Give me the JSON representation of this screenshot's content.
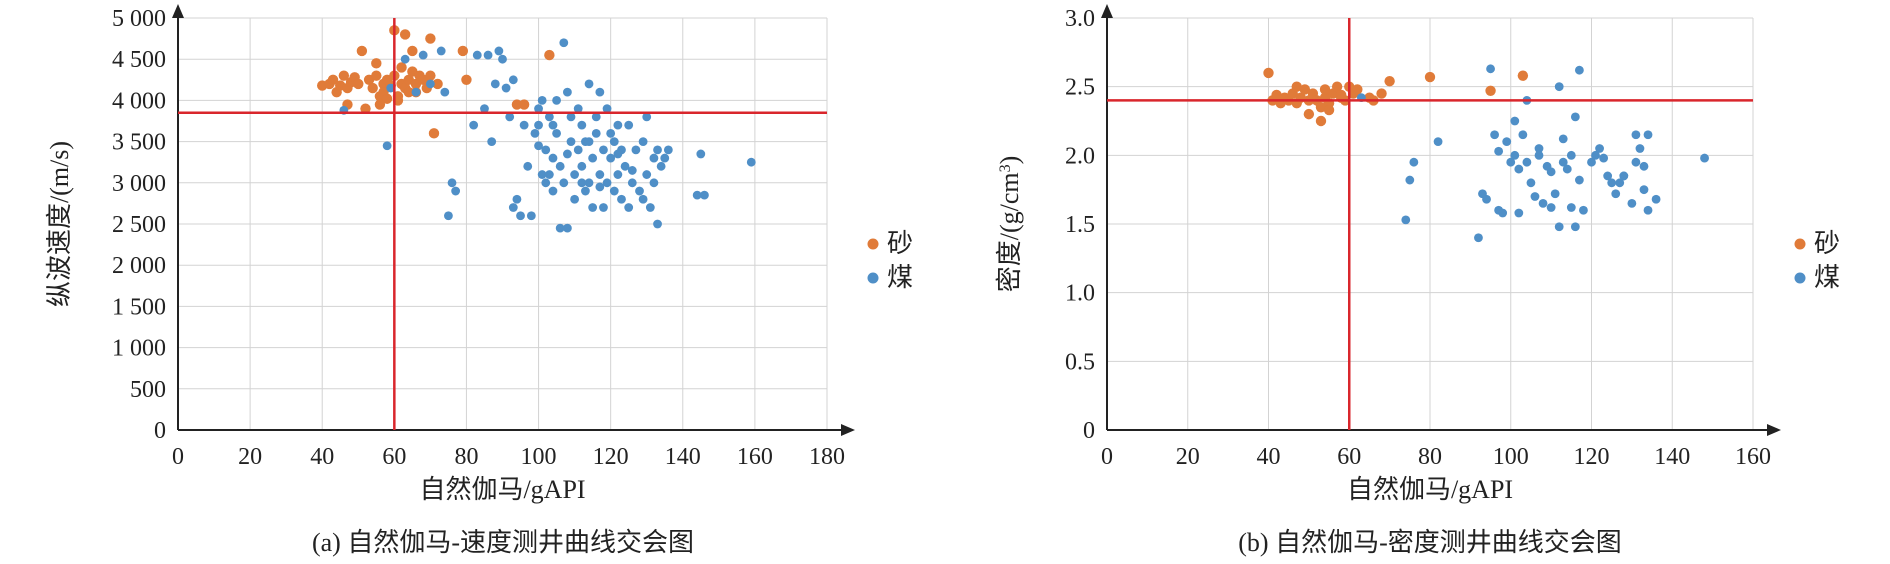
{
  "colors": {
    "sand": "#E07B39",
    "coal": "#4F8FC7",
    "threshold": "#D9262C",
    "grid": "#D3D3D3",
    "axis": "#222222"
  },
  "chart_data": [
    {
      "type": "scatter",
      "caption": "(a) 自然伽马-速度测井曲线交会图",
      "xlabel": "自然伽马/gAPI",
      "ylabel": "纵波速度/(m/s)",
      "xlim": [
        0,
        180
      ],
      "ylim": [
        0,
        5000
      ],
      "xticks": [
        "0",
        "20",
        "40",
        "60",
        "80",
        "100",
        "120",
        "140",
        "160",
        "180"
      ],
      "yticks": [
        "0",
        "500",
        "1 000",
        "1 500",
        "2 000",
        "2 500",
        "3 000",
        "3 500",
        "4 000",
        "4 500",
        "5 000"
      ],
      "grid": true,
      "legend": "right",
      "threshold": {
        "x": 60,
        "y": 3850
      },
      "series": [
        {
          "name": "砂",
          "points": [
            [
              40,
              4180
            ],
            [
              42,
              4200
            ],
            [
              43,
              4250
            ],
            [
              44,
              4100
            ],
            [
              45,
              4180
            ],
            [
              46,
              4300
            ],
            [
              47,
              4150
            ],
            [
              47,
              3950
            ],
            [
              48,
              4220
            ],
            [
              49,
              4280
            ],
            [
              50,
              4200
            ],
            [
              51,
              4600
            ],
            [
              52,
              3900
            ],
            [
              53,
              4250
            ],
            [
              54,
              4150
            ],
            [
              55,
              4300
            ],
            [
              55,
              4450
            ],
            [
              56,
              4050
            ],
            [
              56,
              3950
            ],
            [
              57,
              4200
            ],
            [
              57,
              4100
            ],
            [
              58,
              4250
            ],
            [
              59,
              4180
            ],
            [
              60,
              4850
            ],
            [
              60,
              4300
            ],
            [
              61,
              4000
            ],
            [
              62,
              4400
            ],
            [
              62,
              4200
            ],
            [
              63,
              4800
            ],
            [
              63,
              4150
            ],
            [
              64,
              4100
            ],
            [
              64,
              4250
            ],
            [
              65,
              4350
            ],
            [
              65,
              4600
            ],
            [
              66,
              4200
            ],
            [
              66,
              4100
            ],
            [
              67,
              4300
            ],
            [
              68,
              4250
            ],
            [
              69,
              4150
            ],
            [
              70,
              4750
            ],
            [
              70,
              4300
            ],
            [
              71,
              3600
            ],
            [
              72,
              4200
            ],
            [
              79,
              4600
            ],
            [
              80,
              4250
            ],
            [
              94,
              3950
            ],
            [
              103,
              4550
            ],
            [
              96,
              3950
            ],
            [
              61,
              4050
            ],
            [
              58,
              4020
            ]
          ]
        },
        {
          "name": "煤",
          "points": [
            [
              46,
              3880
            ],
            [
              58,
              3450
            ],
            [
              59,
              4150
            ],
            [
              63,
              4500
            ],
            [
              66,
              4100
            ],
            [
              68,
              4550
            ],
            [
              70,
              4200
            ],
            [
              73,
              4600
            ],
            [
              74,
              4100
            ],
            [
              75,
              2600
            ],
            [
              76,
              3000
            ],
            [
              77,
              2900
            ],
            [
              82,
              3700
            ],
            [
              83,
              4550
            ],
            [
              85,
              3900
            ],
            [
              86,
              4550
            ],
            [
              87,
              3500
            ],
            [
              88,
              4200
            ],
            [
              89,
              4600
            ],
            [
              90,
              4500
            ],
            [
              91,
              4150
            ],
            [
              92,
              3800
            ],
            [
              93,
              4250
            ],
            [
              93,
              2700
            ],
            [
              94,
              2800
            ],
            [
              95,
              2600
            ],
            [
              96,
              3700
            ],
            [
              97,
              3200
            ],
            [
              98,
              2600
            ],
            [
              99,
              3600
            ],
            [
              100,
              3900
            ],
            [
              100,
              3700
            ],
            [
              101,
              3100
            ],
            [
              101,
              4000
            ],
            [
              102,
              3400
            ],
            [
              102,
              3000
            ],
            [
              103,
              3800
            ],
            [
              103,
              3100
            ],
            [
              104,
              2900
            ],
            [
              104,
              3300
            ],
            [
              105,
              4000
            ],
            [
              105,
              3600
            ],
            [
              106,
              2450
            ],
            [
              106,
              3200
            ],
            [
              107,
              4700
            ],
            [
              107,
              3000
            ],
            [
              108,
              4100
            ],
            [
              108,
              2450
            ],
            [
              109,
              3500
            ],
            [
              109,
              3800
            ],
            [
              110,
              3100
            ],
            [
              110,
              2800
            ],
            [
              111,
              3400
            ],
            [
              111,
              3900
            ],
            [
              112,
              3000
            ],
            [
              112,
              3200
            ],
            [
              113,
              3500
            ],
            [
              113,
              2900
            ],
            [
              114,
              4200
            ],
            [
              114,
              3000
            ],
            [
              115,
              3300
            ],
            [
              115,
              2700
            ],
            [
              116,
              3600
            ],
            [
              116,
              3800
            ],
            [
              117,
              3100
            ],
            [
              117,
              4100
            ],
            [
              118,
              3400
            ],
            [
              118,
              2700
            ],
            [
              119,
              3900
            ],
            [
              119,
              3000
            ],
            [
              120,
              3600
            ],
            [
              120,
              3300
            ],
            [
              121,
              2900
            ],
            [
              121,
              3500
            ],
            [
              122,
              3700
            ],
            [
              122,
              3100
            ],
            [
              123,
              3400
            ],
            [
              123,
              2800
            ],
            [
              124,
              3200
            ],
            [
              125,
              3700
            ],
            [
              125,
              2700
            ],
            [
              126,
              3000
            ],
            [
              127,
              3400
            ],
            [
              128,
              2900
            ],
            [
              129,
              3500
            ],
            [
              129,
              2800
            ],
            [
              130,
              3800
            ],
            [
              130,
              3100
            ],
            [
              131,
              2700
            ],
            [
              132,
              3300
            ],
            [
              132,
              3000
            ],
            [
              133,
              2500
            ],
            [
              133,
              3400
            ],
            [
              134,
              3200
            ],
            [
              135,
              3300
            ],
            [
              136,
              3400
            ],
            [
              144,
              2850
            ],
            [
              145,
              3350
            ],
            [
              146,
              2850
            ],
            [
              159,
              3250
            ],
            [
              100,
              3450
            ],
            [
              104,
              3700
            ],
            [
              112,
              3700
            ],
            [
              117,
              2950
            ],
            [
              122,
              3350
            ],
            [
              126,
              3150
            ],
            [
              108,
              3350
            ],
            [
              114,
              3500
            ]
          ]
        }
      ]
    },
    {
      "type": "scatter",
      "caption": "(b) 自然伽马-密度测井曲线交会图",
      "xlabel": "自然伽马/gAPI",
      "ylabel_main": "密度/(g/cm",
      "ylabel_sup": "3",
      "ylabel_end": ")",
      "xlim": [
        0,
        160
      ],
      "ylim": [
        0,
        3.0
      ],
      "xticks": [
        "0",
        "20",
        "40",
        "60",
        "80",
        "100",
        "120",
        "140",
        "160"
      ],
      "yticks": [
        "0",
        "0.5",
        "1.0",
        "1.5",
        "2.0",
        "2.5",
        "3.0"
      ],
      "grid": true,
      "legend": "right",
      "threshold": {
        "x": 60,
        "y": 2.4
      },
      "series": [
        {
          "name": "砂",
          "points": [
            [
              40,
              2.6
            ],
            [
              41,
              2.4
            ],
            [
              42,
              2.44
            ],
            [
              43,
              2.38
            ],
            [
              44,
              2.42
            ],
            [
              45,
              2.4
            ],
            [
              46,
              2.45
            ],
            [
              47,
              2.5
            ],
            [
              47,
              2.38
            ],
            [
              48,
              2.42
            ],
            [
              49,
              2.48
            ],
            [
              50,
              2.4
            ],
            [
              50,
              2.3
            ],
            [
              51,
              2.45
            ],
            [
              52,
              2.4
            ],
            [
              53,
              2.35
            ],
            [
              53,
              2.25
            ],
            [
              54,
              2.42
            ],
            [
              55,
              2.38
            ],
            [
              55,
              2.33
            ],
            [
              56,
              2.45
            ],
            [
              57,
              2.5
            ],
            [
              58,
              2.42
            ],
            [
              59,
              2.4
            ],
            [
              60,
              2.5
            ],
            [
              61,
              2.45
            ],
            [
              62,
              2.48
            ],
            [
              65,
              2.42
            ],
            [
              66,
              2.4
            ],
            [
              70,
              2.54
            ],
            [
              68,
              2.45
            ],
            [
              80,
              2.57
            ],
            [
              95,
              2.47
            ],
            [
              103,
              2.58
            ],
            [
              54,
              2.48
            ],
            [
              58,
              2.44
            ]
          ]
        },
        {
          "name": "煤",
          "points": [
            [
              63,
              2.42
            ],
            [
              74,
              1.53
            ],
            [
              75,
              1.82
            ],
            [
              76,
              1.95
            ],
            [
              82,
              2.1
            ],
            [
              92,
              1.4
            ],
            [
              93,
              1.72
            ],
            [
              94,
              1.68
            ],
            [
              95,
              2.63
            ],
            [
              96,
              2.15
            ],
            [
              97,
              1.6
            ],
            [
              98,
              1.58
            ],
            [
              99,
              2.1
            ],
            [
              100,
              1.95
            ],
            [
              101,
              2.0
            ],
            [
              101,
              2.25
            ],
            [
              102,
              1.9
            ],
            [
              102,
              1.58
            ],
            [
              103,
              2.15
            ],
            [
              104,
              1.95
            ],
            [
              104,
              2.4
            ],
            [
              105,
              1.8
            ],
            [
              106,
              1.7
            ],
            [
              107,
              2.05
            ],
            [
              108,
              1.65
            ],
            [
              109,
              1.92
            ],
            [
              110,
              1.88
            ],
            [
              111,
              1.72
            ],
            [
              112,
              1.48
            ],
            [
              112,
              2.5
            ],
            [
              113,
              1.95
            ],
            [
              113,
              2.12
            ],
            [
              114,
              1.9
            ],
            [
              115,
              1.62
            ],
            [
              116,
              1.48
            ],
            [
              116,
              2.28
            ],
            [
              117,
              2.62
            ],
            [
              117,
              1.82
            ],
            [
              118,
              1.6
            ],
            [
              120,
              1.95
            ],
            [
              121,
              2.0
            ],
            [
              122,
              2.05
            ],
            [
              123,
              1.98
            ],
            [
              124,
              1.85
            ],
            [
              125,
              1.8
            ],
            [
              126,
              1.72
            ],
            [
              127,
              1.8
            ],
            [
              128,
              1.85
            ],
            [
              130,
              1.65
            ],
            [
              131,
              1.95
            ],
            [
              131,
              2.15
            ],
            [
              132,
              2.05
            ],
            [
              133,
              1.92
            ],
            [
              133,
              1.75
            ],
            [
              134,
              1.6
            ],
            [
              134,
              2.15
            ],
            [
              136,
              1.68
            ],
            [
              148,
              1.98
            ],
            [
              97,
              2.03
            ],
            [
              107,
              2.0
            ],
            [
              115,
              2.0
            ],
            [
              128,
              1.85
            ],
            [
              110,
              1.62
            ]
          ]
        }
      ]
    }
  ]
}
